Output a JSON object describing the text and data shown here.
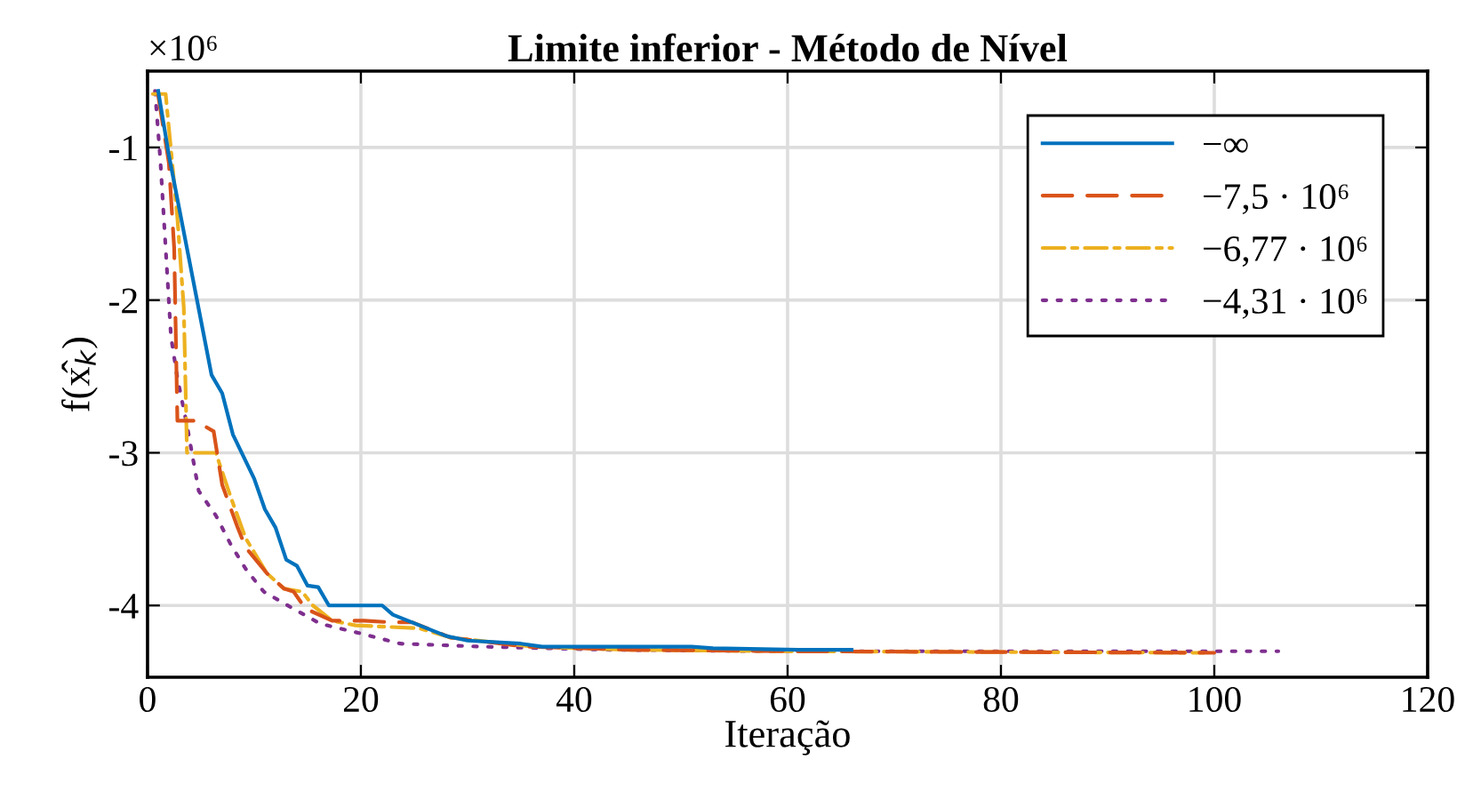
{
  "chart_data": {
    "type": "line",
    "title": "Limite inferior - Método de Nível",
    "xlabel": "Iteração",
    "ylabel": "f(x̂$_{k}$)",
    "annotations": [
      "×10⁶"
    ],
    "xlim": [
      0,
      120
    ],
    "xticks": [
      0,
      20,
      40,
      60,
      80,
      100,
      120
    ],
    "ylim": [
      -4.47,
      -0.5
    ],
    "yticks": [
      -4,
      -3,
      -2,
      -1
    ],
    "grid": true,
    "legend": "top right",
    "series": [
      {
        "name": "−∞",
        "color": "#0072bd",
        "line_style": "solid",
        "x": [
          1,
          2,
          5,
          6,
          7,
          8,
          10,
          11,
          12,
          13,
          14,
          15,
          16,
          17,
          22,
          23,
          28,
          30,
          35,
          37,
          51,
          53,
          61,
          66
        ],
        "values": [
          -0.63,
          -1.05,
          -2.13,
          -2.49,
          -2.61,
          -2.88,
          -3.17,
          -3.37,
          -3.49,
          -3.7,
          -3.74,
          -3.87,
          -3.88,
          -4.0,
          -4.0,
          -4.06,
          -4.2,
          -4.23,
          -4.25,
          -4.27,
          -4.27,
          -4.28,
          -4.29,
          -4.29
        ]
      },
      {
        "name": "−7,5 · 10⁶",
        "color": "#d95319",
        "line_style": "dashed",
        "x": [
          1,
          2,
          2.5,
          2.8,
          4.5,
          6.2,
          7,
          8.4,
          9.2,
          11.2,
          12.8,
          13.7,
          14.8,
          17.3,
          20.3,
          22.8,
          24.8,
          28.4,
          35.5,
          45,
          60,
          100
        ],
        "values": [
          -0.66,
          -1.1,
          -1.66,
          -2.79,
          -2.79,
          -2.86,
          -3.21,
          -3.48,
          -3.62,
          -3.79,
          -3.89,
          -3.91,
          -4.02,
          -4.1,
          -4.1,
          -4.11,
          -4.11,
          -4.21,
          -4.27,
          -4.29,
          -4.3,
          -4.31
        ]
      },
      {
        "name": "−6,77 · 10⁶",
        "color": "#edb120",
        "line_style": "dashdot",
        "x": [
          0.5,
          1.7,
          2.8,
          3.4,
          3.7,
          6.4,
          7.8,
          9.2,
          11.2,
          12.8,
          14.5,
          15.5,
          17.3,
          19.5,
          25.5,
          28.4,
          36.2,
          45,
          60,
          99
        ],
        "values": [
          -0.65,
          -0.65,
          -1.46,
          -2.05,
          -3.0,
          -3.0,
          -3.29,
          -3.56,
          -3.79,
          -3.89,
          -3.91,
          -4.0,
          -4.1,
          -4.13,
          -4.15,
          -4.21,
          -4.27,
          -4.29,
          -4.3,
          -4.31
        ]
      },
      {
        "name": "−4,31 · 10⁶",
        "color": "#7e2f8e",
        "line_style": "dotted",
        "x": [
          0.7,
          1.2,
          1.7,
          2.2,
          2.8,
          3.7,
          4.8,
          6.4,
          7.8,
          9.2,
          10.9,
          13.4,
          16.2,
          19.8,
          23.7,
          31.4,
          43.3,
          60,
          106
        ],
        "values": [
          -0.63,
          -1.08,
          -1.66,
          -2.24,
          -2.51,
          -2.82,
          -3.25,
          -3.41,
          -3.6,
          -3.76,
          -3.91,
          -4.01,
          -4.12,
          -4.18,
          -4.25,
          -4.27,
          -4.29,
          -4.3,
          -4.3
        ]
      }
    ]
  }
}
